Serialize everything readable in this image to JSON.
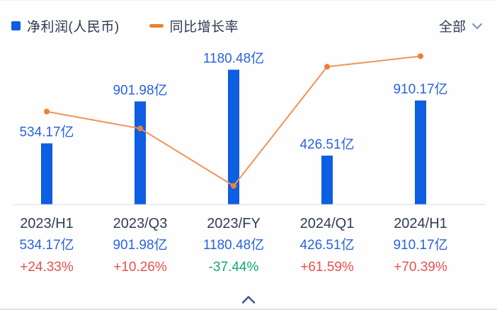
{
  "legend": {
    "net_profit_label": "净利润(人民币)",
    "growth_label": "同比增长率"
  },
  "filter": {
    "selected": "全部"
  },
  "chart_data": {
    "type": "bar+line",
    "categories": [
      "2023/H1",
      "2023/Q3",
      "2023/FY",
      "2024/Q1",
      "2024/H1"
    ],
    "series": [
      {
        "name": "净利润(人民币)",
        "type": "bar",
        "unit": "亿",
        "values": [
          534.17,
          901.98,
          1180.48,
          426.51,
          910.17
        ],
        "labels": [
          "534.17亿",
          "901.98亿",
          "1180.48亿",
          "426.51亿",
          "910.17亿"
        ]
      },
      {
        "name": "同比增长率",
        "type": "line",
        "unit": "%",
        "values": [
          24.33,
          10.26,
          -37.44,
          61.59,
          70.39
        ],
        "labels": [
          "+24.33%",
          "+10.26%",
          "-37.44%",
          "+61.59%",
          "+70.39%"
        ]
      }
    ],
    "legend_position": "top-left",
    "grid": false,
    "baseline": true
  },
  "colors": {
    "bar": "#0d5ee0",
    "line": "#f29257",
    "marker": "#ef7f33",
    "bar_label_text": "#2a63e0",
    "category_text": "#313c56",
    "value_text": "#2a63e0",
    "positive": "#e9504c",
    "negative": "#12a969",
    "legend_text": "#2e3850",
    "baseline_line": "#e4e6ea"
  },
  "footer": {
    "collapse_icon": "chevron-up"
  }
}
